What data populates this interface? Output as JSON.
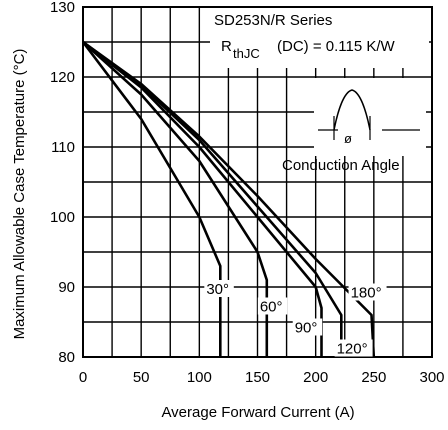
{
  "chart_data": {
    "type": "line",
    "title": "SD253N/R Series",
    "rthjc_label": "R",
    "rthjc_subscript": "thJC",
    "rthjc_value": "(DC) = 0.115 K/W",
    "inset_label": "Conduction Angle",
    "inset_symbol": "ø",
    "xlabel": "Average Forward Current (A)",
    "ylabel": "Maximum Allowable Case Temperature (°C)",
    "xlim": [
      0,
      300
    ],
    "ylim": [
      80,
      130
    ],
    "xticks": [
      "0",
      "50",
      "100",
      "150",
      "200",
      "250",
      "300"
    ],
    "yticks": [
      "80",
      "90",
      "100",
      "110",
      "120",
      "130"
    ],
    "grid": true,
    "series": [
      {
        "name": "30°",
        "x": [
          0,
          50,
          100,
          118,
          118
        ],
        "y": [
          125,
          114,
          100,
          93,
          80
        ]
      },
      {
        "name": "60°",
        "x": [
          0,
          50,
          100,
          150,
          158,
          158
        ],
        "y": [
          125,
          117.5,
          108,
          95,
          91,
          80
        ]
      },
      {
        "name": "90°",
        "x": [
          0,
          50,
          100,
          150,
          200,
          205,
          205
        ],
        "y": [
          125,
          118.5,
          110,
          100,
          90,
          87,
          80
        ]
      },
      {
        "name": "120°",
        "x": [
          0,
          50,
          100,
          150,
          200,
          222,
          222
        ],
        "y": [
          125,
          118.8,
          111,
          101.5,
          92,
          86,
          80
        ]
      },
      {
        "name": "180°",
        "x": [
          0,
          50,
          100,
          150,
          200,
          248,
          250
        ],
        "y": [
          125,
          119,
          111.5,
          103,
          94,
          86,
          80
        ]
      }
    ]
  }
}
